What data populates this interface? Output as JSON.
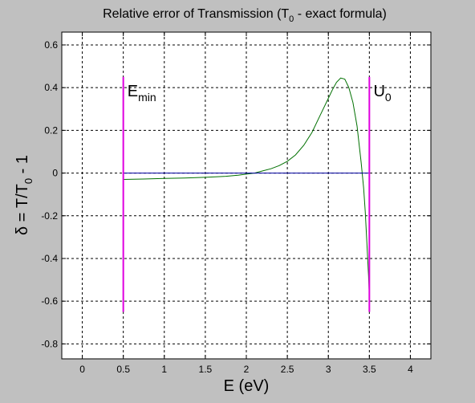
{
  "chart_data": {
    "type": "line",
    "title": {
      "main": "Relative error of Transmission (T",
      "sub": "0",
      "tail": " - exact formula)"
    },
    "xlabel": "E (eV)",
    "ylabel": {
      "main": "δ = T/T",
      "sub": "0",
      "tail": " - 1"
    },
    "xlim": [
      -0.25,
      4.25
    ],
    "ylim": [
      -0.87,
      0.66
    ],
    "xticks": [
      0,
      0.5,
      1,
      1.5,
      2,
      2.5,
      3,
      3.5,
      4
    ],
    "xtick_labels": [
      "0",
      "0.5",
      "1",
      "1.5",
      "2",
      "2.5",
      "3",
      "3.5",
      "4"
    ],
    "yticks": [
      0.6,
      0.4,
      0.2,
      0,
      -0.2,
      -0.4,
      -0.6,
      -0.8
    ],
    "ytick_labels": [
      "0.6",
      "0.4",
      "0.2",
      "0",
      "-0.2",
      "-0.4",
      "-0.6",
      "-0.8"
    ],
    "grid": true,
    "series": [
      {
        "color": "#007000",
        "x": [
          0.5,
          0.75,
          1.0,
          1.25,
          1.5,
          1.75,
          1.9,
          2.0,
          2.1,
          2.2,
          2.3,
          2.4,
          2.5,
          2.6,
          2.7,
          2.8,
          2.9,
          3.0,
          3.05,
          3.1,
          3.15,
          3.2,
          3.25,
          3.3,
          3.35,
          3.4,
          3.43,
          3.45,
          3.47,
          3.49,
          3.5
        ],
        "y": [
          -0.03,
          -0.028,
          -0.025,
          -0.023,
          -0.02,
          -0.015,
          -0.01,
          -0.005,
          0.0,
          0.01,
          0.02,
          0.035,
          0.055,
          0.085,
          0.13,
          0.19,
          0.27,
          0.35,
          0.39,
          0.425,
          0.445,
          0.44,
          0.4,
          0.33,
          0.22,
          0.05,
          -0.07,
          -0.18,
          -0.33,
          -0.48,
          -0.58
        ]
      },
      {
        "color": "#0000a0",
        "x": [
          0.5,
          3.5
        ],
        "y": [
          0,
          0
        ]
      }
    ],
    "vlines": [
      {
        "x": 0.5,
        "y_range": [
          -0.65,
          0.45
        ],
        "color": "#e000e0"
      },
      {
        "x": 3.5,
        "y_range": [
          -0.65,
          0.45
        ],
        "color": "#e000e0"
      }
    ],
    "annotations": [
      {
        "main": "E",
        "sub": "min",
        "x": 0.55,
        "y": 0.36
      },
      {
        "main": "U",
        "sub": "0",
        "x": 3.55,
        "y": 0.36
      }
    ]
  }
}
